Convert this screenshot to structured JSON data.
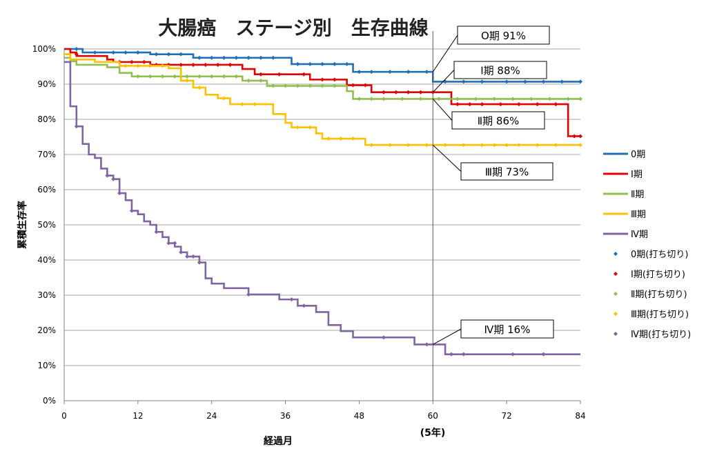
{
  "chart_data": {
    "type": "line",
    "title": "大腸癌　ステージ別　生存曲線",
    "xlabel": "経過月",
    "ylabel": "累積生存率",
    "xlim": [
      0,
      84
    ],
    "ylim": [
      0,
      1
    ],
    "x_ticks": [
      "0",
      "12",
      "24",
      "36",
      "48",
      "60",
      "72",
      "84"
    ],
    "y_ticks": [
      "0%",
      "10%",
      "20%",
      "30%",
      "40%",
      "50%",
      "60%",
      "70%",
      "80%",
      "90%",
      "100%"
    ],
    "x_extra_label": "(5年)",
    "reference_line_x": 60,
    "grid": true,
    "legend_position": "right",
    "series": [
      {
        "name": "0期",
        "censor_name": "0期(打ち切り)",
        "color": "#1f6fb7",
        "steps": [
          [
            0,
            1.0
          ],
          [
            3,
            0.99
          ],
          [
            14,
            0.985
          ],
          [
            21,
            0.975
          ],
          [
            37,
            0.957
          ],
          [
            47,
            0.935
          ],
          [
            60,
            0.907
          ],
          [
            84,
            0.907
          ]
        ],
        "censored": [
          [
            2,
            1.0
          ],
          [
            5,
            0.99
          ],
          [
            8,
            0.99
          ],
          [
            10,
            0.99
          ],
          [
            12,
            0.99
          ],
          [
            15,
            0.985
          ],
          [
            17,
            0.985
          ],
          [
            19,
            0.985
          ],
          [
            22,
            0.975
          ],
          [
            24,
            0.975
          ],
          [
            26,
            0.975
          ],
          [
            28,
            0.975
          ],
          [
            30,
            0.975
          ],
          [
            32,
            0.975
          ],
          [
            34,
            0.975
          ],
          [
            38,
            0.957
          ],
          [
            40,
            0.957
          ],
          [
            42,
            0.957
          ],
          [
            44,
            0.957
          ],
          [
            46,
            0.957
          ],
          [
            48,
            0.935
          ],
          [
            50,
            0.935
          ],
          [
            53,
            0.935
          ],
          [
            56,
            0.935
          ],
          [
            59,
            0.935
          ],
          [
            62,
            0.907
          ],
          [
            65,
            0.907
          ],
          [
            68,
            0.907
          ],
          [
            72,
            0.907
          ],
          [
            75,
            0.907
          ],
          [
            78,
            0.907
          ],
          [
            81,
            0.907
          ],
          [
            84,
            0.907
          ]
        ]
      },
      {
        "name": "Ⅰ期",
        "censor_name": "Ⅰ期(打ち切り)",
        "color": "#e00000",
        "steps": [
          [
            0,
            1.0
          ],
          [
            1,
            0.99
          ],
          [
            2,
            0.98
          ],
          [
            7,
            0.97
          ],
          [
            8,
            0.963
          ],
          [
            14,
            0.955
          ],
          [
            29,
            0.943
          ],
          [
            31,
            0.928
          ],
          [
            40,
            0.913
          ],
          [
            46,
            0.897
          ],
          [
            50,
            0.877
          ],
          [
            63,
            0.843
          ],
          [
            82,
            0.752
          ],
          [
            84,
            0.752
          ]
        ],
        "censored": [
          [
            2,
            0.985
          ],
          [
            9,
            0.963
          ],
          [
            11,
            0.963
          ],
          [
            13,
            0.963
          ],
          [
            15,
            0.955
          ],
          [
            17,
            0.955
          ],
          [
            19,
            0.955
          ],
          [
            21,
            0.955
          ],
          [
            23,
            0.955
          ],
          [
            25,
            0.955
          ],
          [
            27,
            0.955
          ],
          [
            32,
            0.928
          ],
          [
            35,
            0.928
          ],
          [
            39,
            0.928
          ],
          [
            42,
            0.913
          ],
          [
            44,
            0.913
          ],
          [
            47,
            0.897
          ],
          [
            49,
            0.897
          ],
          [
            52,
            0.877
          ],
          [
            54,
            0.877
          ],
          [
            56,
            0.877
          ],
          [
            58,
            0.877
          ],
          [
            60,
            0.877
          ],
          [
            64,
            0.843
          ],
          [
            66,
            0.843
          ],
          [
            68,
            0.843
          ],
          [
            71,
            0.843
          ],
          [
            74,
            0.843
          ],
          [
            77,
            0.843
          ],
          [
            80,
            0.843
          ],
          [
            83,
            0.752
          ],
          [
            84,
            0.752
          ]
        ]
      },
      {
        "name": "Ⅱ期",
        "censor_name": "Ⅱ期(打ち切り)",
        "color": "#8fbf4f",
        "steps": [
          [
            0,
            0.975
          ],
          [
            1,
            0.965
          ],
          [
            2,
            0.955
          ],
          [
            7,
            0.948
          ],
          [
            9,
            0.932
          ],
          [
            11,
            0.922
          ],
          [
            29,
            0.91
          ],
          [
            33,
            0.895
          ],
          [
            46,
            0.88
          ],
          [
            47,
            0.858
          ],
          [
            84,
            0.858
          ]
        ],
        "censored": [
          [
            12,
            0.922
          ],
          [
            14,
            0.922
          ],
          [
            16,
            0.922
          ],
          [
            18,
            0.922
          ],
          [
            20,
            0.922
          ],
          [
            22,
            0.922
          ],
          [
            24,
            0.922
          ],
          [
            26,
            0.922
          ],
          [
            28,
            0.922
          ],
          [
            30,
            0.91
          ],
          [
            32,
            0.91
          ],
          [
            34,
            0.895
          ],
          [
            36,
            0.895
          ],
          [
            38,
            0.895
          ],
          [
            40,
            0.895
          ],
          [
            42,
            0.895
          ],
          [
            44,
            0.895
          ],
          [
            48,
            0.858
          ],
          [
            50,
            0.858
          ],
          [
            52,
            0.858
          ],
          [
            55,
            0.858
          ],
          [
            58,
            0.858
          ],
          [
            61,
            0.858
          ],
          [
            64,
            0.858
          ],
          [
            67,
            0.858
          ],
          [
            70,
            0.858
          ],
          [
            73,
            0.858
          ],
          [
            76,
            0.858
          ],
          [
            79,
            0.858
          ],
          [
            82,
            0.858
          ],
          [
            84,
            0.858
          ]
        ]
      },
      {
        "name": "Ⅲ期",
        "censor_name": "Ⅲ期(打ち切り)",
        "color": "#ffc000",
        "steps": [
          [
            0,
            0.985
          ],
          [
            1,
            0.97
          ],
          [
            5,
            0.963
          ],
          [
            9,
            0.952
          ],
          [
            17,
            0.945
          ],
          [
            19,
            0.91
          ],
          [
            21,
            0.89
          ],
          [
            23,
            0.87
          ],
          [
            25,
            0.86
          ],
          [
            27,
            0.843
          ],
          [
            34,
            0.815
          ],
          [
            36,
            0.79
          ],
          [
            37,
            0.777
          ],
          [
            41,
            0.76
          ],
          [
            42,
            0.745
          ],
          [
            49,
            0.727
          ],
          [
            84,
            0.727
          ]
        ],
        "censored": [
          [
            10,
            0.952
          ],
          [
            12,
            0.952
          ],
          [
            14,
            0.952
          ],
          [
            16,
            0.952
          ],
          [
            20,
            0.91
          ],
          [
            22,
            0.89
          ],
          [
            26,
            0.86
          ],
          [
            29,
            0.843
          ],
          [
            31,
            0.843
          ],
          [
            38,
            0.777
          ],
          [
            40,
            0.777
          ],
          [
            43,
            0.745
          ],
          [
            45,
            0.745
          ],
          [
            47,
            0.745
          ],
          [
            50,
            0.727
          ],
          [
            53,
            0.727
          ],
          [
            56,
            0.727
          ],
          [
            59,
            0.727
          ],
          [
            62,
            0.727
          ],
          [
            65,
            0.727
          ],
          [
            68,
            0.727
          ],
          [
            70,
            0.727
          ],
          [
            72,
            0.727
          ],
          [
            74,
            0.727
          ],
          [
            77,
            0.727
          ],
          [
            80,
            0.727
          ],
          [
            84,
            0.727
          ]
        ]
      },
      {
        "name": "Ⅳ期",
        "censor_name": "Ⅳ期(打ち切り)",
        "color": "#8064a2",
        "steps": [
          [
            0,
            0.963
          ],
          [
            1,
            0.837
          ],
          [
            2,
            0.78
          ],
          [
            3,
            0.73
          ],
          [
            4,
            0.7
          ],
          [
            5,
            0.69
          ],
          [
            6,
            0.66
          ],
          [
            7,
            0.64
          ],
          [
            8,
            0.63
          ],
          [
            9,
            0.59
          ],
          [
            10,
            0.57
          ],
          [
            11,
            0.54
          ],
          [
            12,
            0.53
          ],
          [
            13,
            0.51
          ],
          [
            14,
            0.5
          ],
          [
            15,
            0.48
          ],
          [
            16,
            0.465
          ],
          [
            17,
            0.448
          ],
          [
            18,
            0.438
          ],
          [
            19,
            0.422
          ],
          [
            20,
            0.41
          ],
          [
            22,
            0.393
          ],
          [
            23,
            0.348
          ],
          [
            24,
            0.333
          ],
          [
            26,
            0.32
          ],
          [
            30,
            0.302
          ],
          [
            35,
            0.288
          ],
          [
            38,
            0.27
          ],
          [
            41,
            0.252
          ],
          [
            43,
            0.215
          ],
          [
            45,
            0.198
          ],
          [
            47,
            0.18
          ],
          [
            57,
            0.16
          ],
          [
            62,
            0.132
          ],
          [
            84,
            0.132
          ]
        ],
        "censored": [
          [
            2,
            0.78
          ],
          [
            7,
            0.64
          ],
          [
            8,
            0.63
          ],
          [
            9,
            0.59
          ],
          [
            11,
            0.54
          ],
          [
            15,
            0.48
          ],
          [
            17,
            0.448
          ],
          [
            18,
            0.448
          ],
          [
            19,
            0.422
          ],
          [
            20,
            0.41
          ],
          [
            21,
            0.41
          ],
          [
            22,
            0.393
          ],
          [
            30,
            0.302
          ],
          [
            37,
            0.288
          ],
          [
            39,
            0.27
          ],
          [
            52,
            0.18
          ],
          [
            59,
            0.16
          ],
          [
            63,
            0.132
          ],
          [
            65,
            0.132
          ],
          [
            73,
            0.132
          ],
          [
            78,
            0.132
          ]
        ]
      }
    ],
    "callouts": [
      {
        "text": "O期  91%",
        "target_x": 60,
        "target_y": 0.935
      },
      {
        "text": "Ⅰ期  88%",
        "target_x": 60,
        "target_y": 0.877
      },
      {
        "text": "Ⅱ期  86%",
        "target_x": 60,
        "target_y": 0.858
      },
      {
        "text": "Ⅲ期  73%",
        "target_x": 60,
        "target_y": 0.727
      },
      {
        "text": "Ⅳ期  16%",
        "target_x": 60,
        "target_y": 0.16
      }
    ]
  }
}
